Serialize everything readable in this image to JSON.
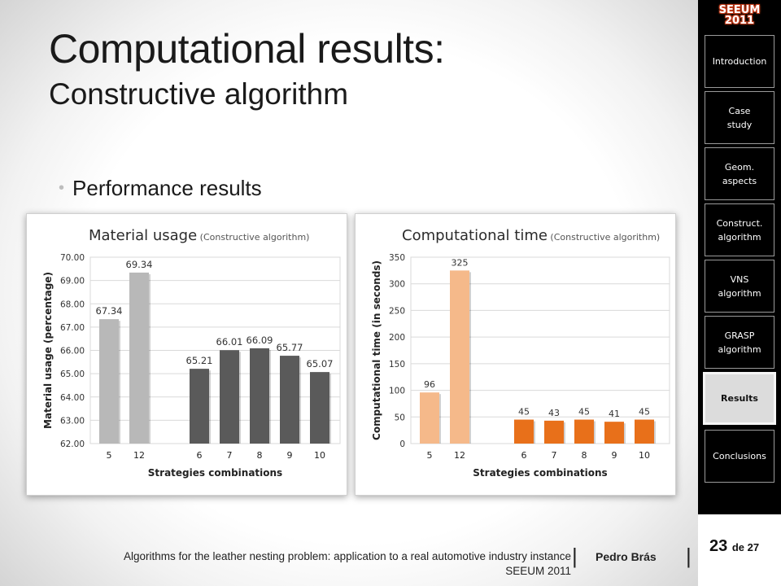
{
  "slide": {
    "title_main": "Computational results:",
    "title_sub": "Constructive algorithm",
    "bullet": "Performance results"
  },
  "sidebar": {
    "logo_line1": "SEEUM",
    "logo_line2": "2011",
    "items": [
      {
        "label": "Introduction"
      },
      {
        "label": "Case\nstudy"
      },
      {
        "label": "Geom.\naspects"
      },
      {
        "label": "Construct.\nalgorithm"
      },
      {
        "label": "VNS\nalgorithm"
      },
      {
        "label": "GRASP\nalgorithm"
      },
      {
        "label": "Results",
        "active": true
      },
      {
        "label": "Conclusions"
      }
    ]
  },
  "footer": {
    "text": "Algorithms for the leather nesting problem: application to a real automotive industry instance",
    "conference": "SEEUM 2011",
    "separator": "|",
    "author": "Pedro Brás",
    "page": "23",
    "page_of": "de 27"
  },
  "chart_data": [
    {
      "type": "bar",
      "title": "Material usage",
      "title_note": "(Constructive algorithm)",
      "xlabel": "Strategies combinations",
      "ylabel": "Material usage (percentage)",
      "ylim": [
        62,
        70
      ],
      "yticks": [
        "62.00",
        "63.00",
        "64.00",
        "65.00",
        "66.00",
        "67.00",
        "68.00",
        "69.00",
        "70.00"
      ],
      "categories": [
        "5",
        "12",
        "6",
        "7",
        "8",
        "9",
        "10"
      ],
      "values": [
        67.34,
        69.34,
        65.21,
        66.01,
        66.09,
        65.77,
        65.07
      ],
      "data_labels": [
        "67.34",
        "69.34",
        "65.21",
        "66.01",
        "66.09",
        "65.77",
        "65.07"
      ],
      "bar_colors": [
        "#b8b8b8",
        "#b8b8b8",
        "#5a5a5a",
        "#5a5a5a",
        "#5a5a5a",
        "#5a5a5a",
        "#5a5a5a"
      ],
      "grid": true
    },
    {
      "type": "bar",
      "title": "Computational time",
      "title_note": "(Constructive algorithm)",
      "xlabel": "Strategies combinations",
      "ylabel": "Computational time (in seconds)",
      "ylim": [
        0,
        350
      ],
      "yticks": [
        "0",
        "50",
        "100",
        "150",
        "200",
        "250",
        "300",
        "350"
      ],
      "categories": [
        "5",
        "12",
        "6",
        "7",
        "8",
        "9",
        "10"
      ],
      "values": [
        96,
        325,
        45,
        43,
        45,
        41,
        45
      ],
      "data_labels": [
        "96",
        "325",
        "45",
        "43",
        "45",
        "41",
        "45"
      ],
      "bar_colors": [
        "#f5b98a",
        "#f5b98a",
        "#e8701a",
        "#e8701a",
        "#e8701a",
        "#e8701a",
        "#e8701a"
      ],
      "grid": true
    }
  ]
}
